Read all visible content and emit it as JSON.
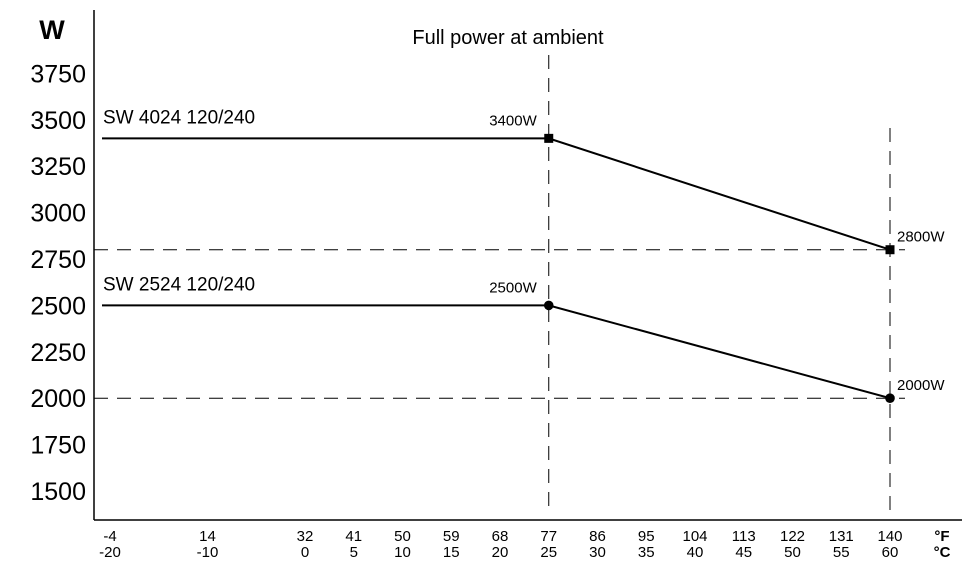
{
  "chart_data": {
    "type": "line",
    "y_unit": "W",
    "y_ticks": [
      1500,
      1750,
      2000,
      2250,
      2500,
      2750,
      3000,
      3250,
      3500,
      3750
    ],
    "ylim": [
      1375,
      3875
    ],
    "x_fahrenheit_ticks": [
      "-4",
      "14",
      "32",
      "41",
      "50",
      "59",
      "68",
      "77",
      "86",
      "95",
      "104",
      "113",
      "122",
      "131",
      "140"
    ],
    "x_celsius_ticks": [
      "-20",
      "-10",
      "0",
      "5",
      "10",
      "15",
      "20",
      "25",
      "30",
      "35",
      "40",
      "45",
      "50",
      "55",
      "60"
    ],
    "x_unit_f": "°F",
    "x_unit_c": "°C",
    "xlim": [
      -20,
      60
    ],
    "annotation": "Full power at ambient",
    "reference_x": [
      25,
      60
    ],
    "reference_y": [
      2800,
      2000
    ],
    "grid": false,
    "series": [
      {
        "name": "SW 4024 120/240",
        "marker": "square",
        "points": [
          [
            -20,
            3400
          ],
          [
            25,
            3400
          ],
          [
            60,
            2800
          ]
        ],
        "marked_points": [
          {
            "x": 25,
            "y": 3400,
            "label": "3400W"
          },
          {
            "x": 60,
            "y": 2800,
            "label": "2800W"
          }
        ]
      },
      {
        "name": "SW 2524 120/240",
        "marker": "circle",
        "points": [
          [
            -20,
            2500
          ],
          [
            25,
            2500
          ],
          [
            60,
            2000
          ]
        ],
        "marked_points": [
          {
            "x": 25,
            "y": 2500,
            "label": "2500W"
          },
          {
            "x": 60,
            "y": 2000,
            "label": "2000W"
          }
        ]
      }
    ]
  }
}
